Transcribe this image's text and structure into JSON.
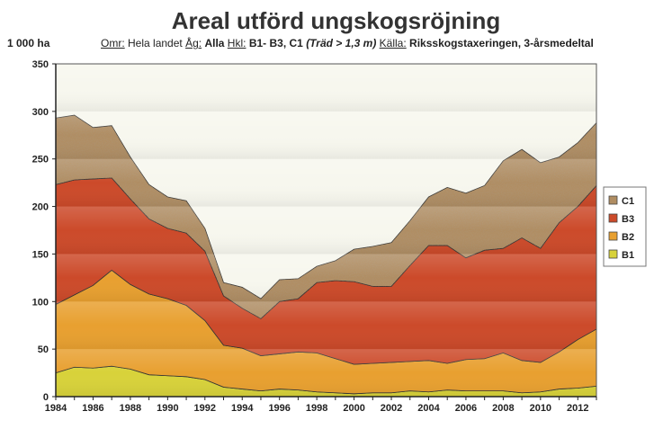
{
  "chart_data": {
    "type": "area",
    "stacked": true,
    "title": "Areal utförd ungskogsröjning",
    "unit_label": "1 000 ha",
    "subtitle": {
      "omr_label": "Omr:",
      "omr_value": "Hela landet",
      "ag_label": "Åg:",
      "ag_value": "Alla",
      "hkl_label": "Hkl:",
      "hkl_value": "B1- B3, C1",
      "hkl_note": "(Träd > 1,3 m)",
      "kalla_label": "Källa:",
      "kalla_value": "Riksskogstaxeringen, 3-årsmedeltal"
    },
    "x": [
      1984,
      1985,
      1986,
      1987,
      1988,
      1989,
      1990,
      1991,
      1992,
      1993,
      1994,
      1995,
      1996,
      1997,
      1998,
      1999,
      2000,
      2001,
      2002,
      2003,
      2004,
      2005,
      2006,
      2007,
      2008,
      2009,
      2010,
      2011,
      2012,
      2013
    ],
    "xticks": [
      "1984",
      "1986",
      "1988",
      "1990",
      "1992",
      "1994",
      "1996",
      "1998",
      "2000",
      "2002",
      "2004",
      "2006",
      "2008",
      "2010",
      "2012"
    ],
    "yticks": [
      "0",
      "50",
      "100",
      "150",
      "200",
      "250",
      "300",
      "350"
    ],
    "ylim": [
      0,
      350
    ],
    "series": [
      {
        "name": "B1",
        "color": "#d8d23a",
        "values": [
          25,
          31,
          30,
          32,
          29,
          23,
          22,
          21,
          18,
          10,
          8,
          6,
          8,
          7,
          5,
          4,
          3,
          4,
          4,
          6,
          5,
          7,
          6,
          6,
          6,
          4,
          5,
          8,
          9,
          11
        ]
      },
      {
        "name": "B2",
        "color": "#e8a030",
        "values": [
          72,
          76,
          87,
          101,
          89,
          85,
          81,
          75,
          62,
          44,
          43,
          37,
          37,
          40,
          41,
          36,
          31,
          31,
          32,
          31,
          33,
          28,
          33,
          34,
          40,
          34,
          31,
          39,
          51,
          60
        ]
      },
      {
        "name": "B3",
        "color": "#cc4a2a",
        "values": [
          126,
          121,
          112,
          97,
          90,
          79,
          74,
          76,
          73,
          52,
          42,
          39,
          55,
          56,
          74,
          82,
          87,
          81,
          80,
          101,
          121,
          124,
          107,
          114,
          110,
          129,
          120,
          136,
          140,
          151
        ]
      },
      {
        "name": "C1",
        "color": "#b08d62",
        "values": [
          70,
          68,
          54,
          55,
          44,
          36,
          33,
          34,
          24,
          14,
          22,
          21,
          23,
          21,
          17,
          21,
          34,
          42,
          46,
          47,
          51,
          61,
          68,
          68,
          92,
          93,
          90,
          69,
          67,
          66
        ]
      }
    ],
    "legend": [
      "C1",
      "B3",
      "B2",
      "B1"
    ],
    "legend_position": "right"
  }
}
